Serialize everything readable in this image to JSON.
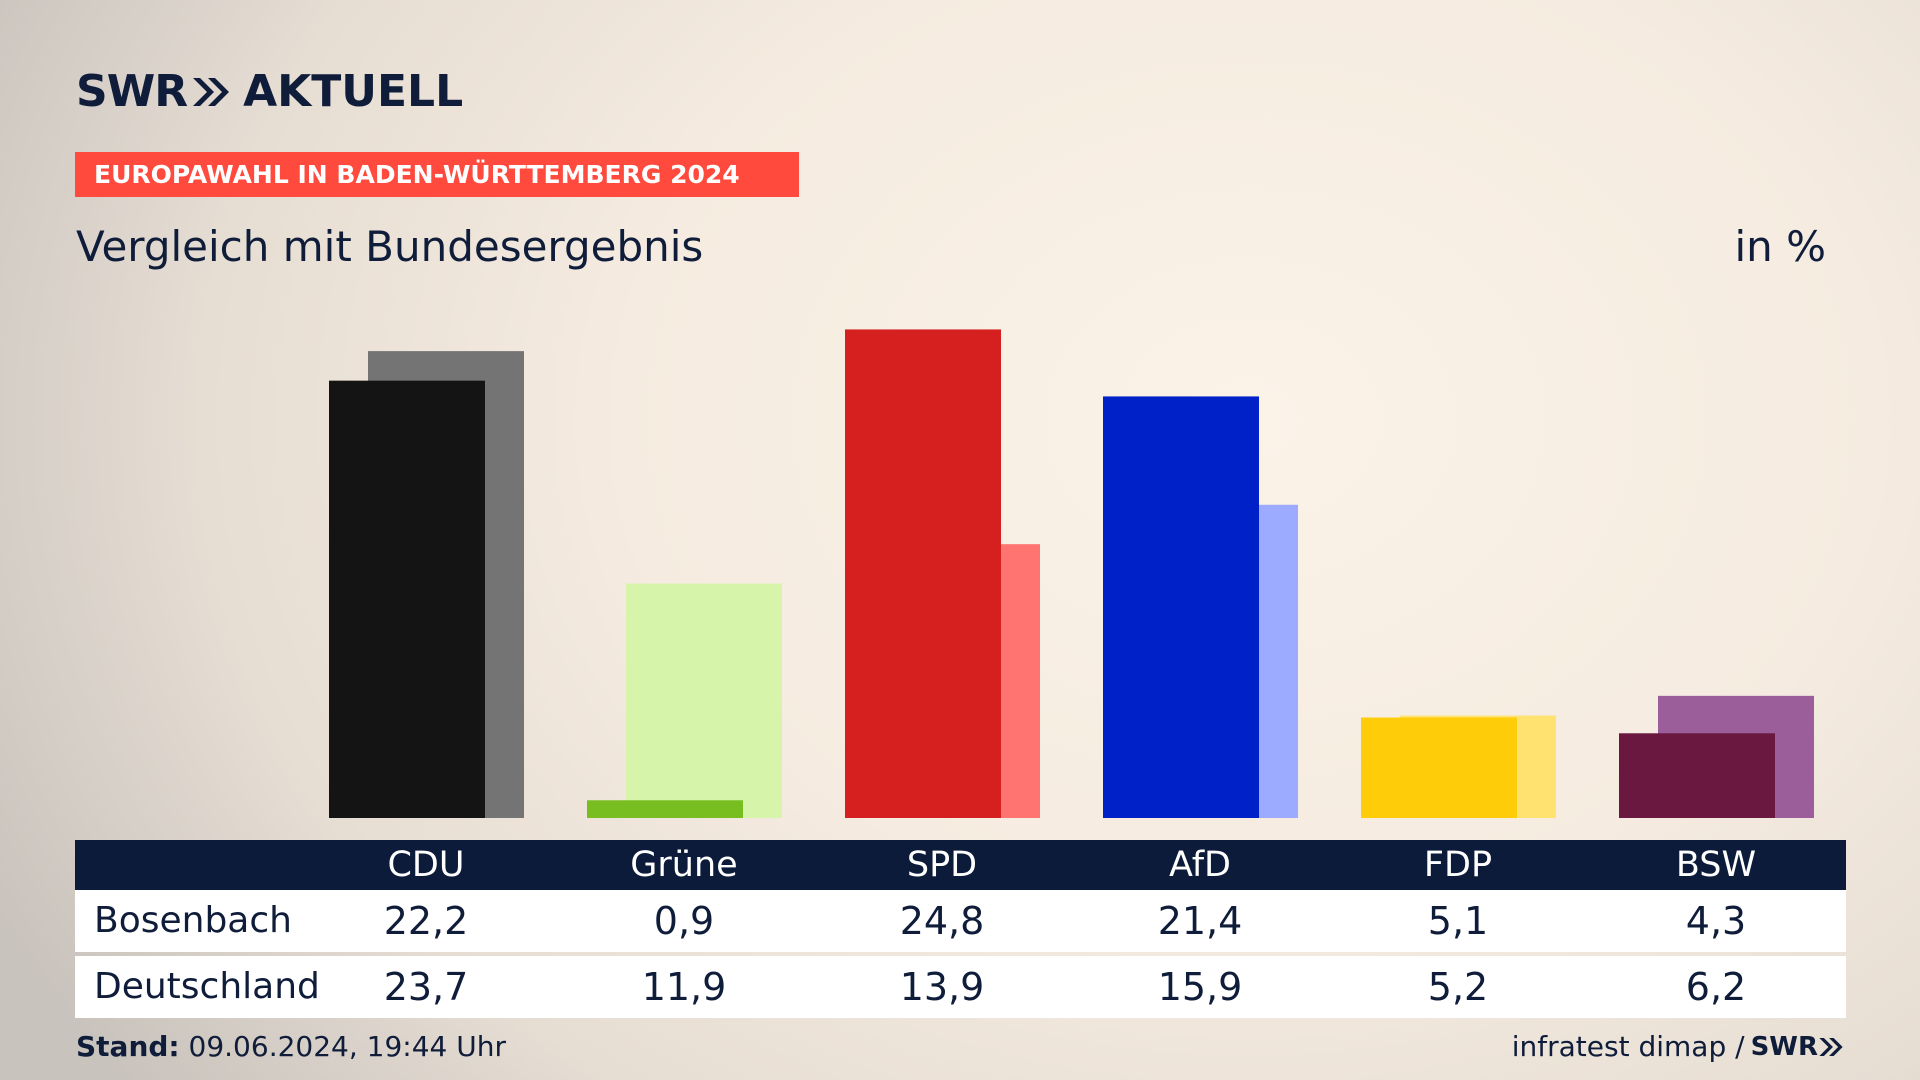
{
  "brand": {
    "logo_main": "SWR",
    "logo_sub": "AKTUELL",
    "color": "#0f1d3a"
  },
  "banner": {
    "text": "EUROPAWAHL IN BADEN-WÜRTTEMBERG 2024",
    "color": "#ff4a3d"
  },
  "title": "Vergleich mit Bundesergebnis",
  "unit": "in %",
  "footer": {
    "stand_label": "Stand:",
    "stand_value": "09.06.2024, 19:44 Uhr",
    "source": "infratest dimap /",
    "source_logo": "SWR"
  },
  "chart_data": {
    "type": "bar",
    "categories": [
      "CDU",
      "Grüne",
      "SPD",
      "AfD",
      "FDP",
      "BSW"
    ],
    "series": [
      {
        "name": "Bosenbach",
        "values": [
          22.2,
          0.9,
          24.8,
          21.4,
          5.1,
          4.3
        ],
        "labels": [
          "22,2",
          "0,9",
          "24,8",
          "21,4",
          "5,1",
          "4,3"
        ]
      },
      {
        "name": "Deutschland",
        "values": [
          23.7,
          11.9,
          13.9,
          15.9,
          5.2,
          6.2
        ],
        "labels": [
          "23,7",
          "11,9",
          "13,9",
          "15,9",
          "5,2",
          "6,2"
        ]
      }
    ],
    "colors_primary": [
      "#141414",
      "#78be20",
      "#d61f1f",
      "#0021c7",
      "#ffcc0a",
      "#6b1840"
    ],
    "colors_secondary": [
      "#747474",
      "#d6f5aa",
      "#ff7370",
      "#9caaff",
      "#ffe270",
      "#9b5e9b"
    ],
    "ylim": [
      0,
      26
    ]
  }
}
